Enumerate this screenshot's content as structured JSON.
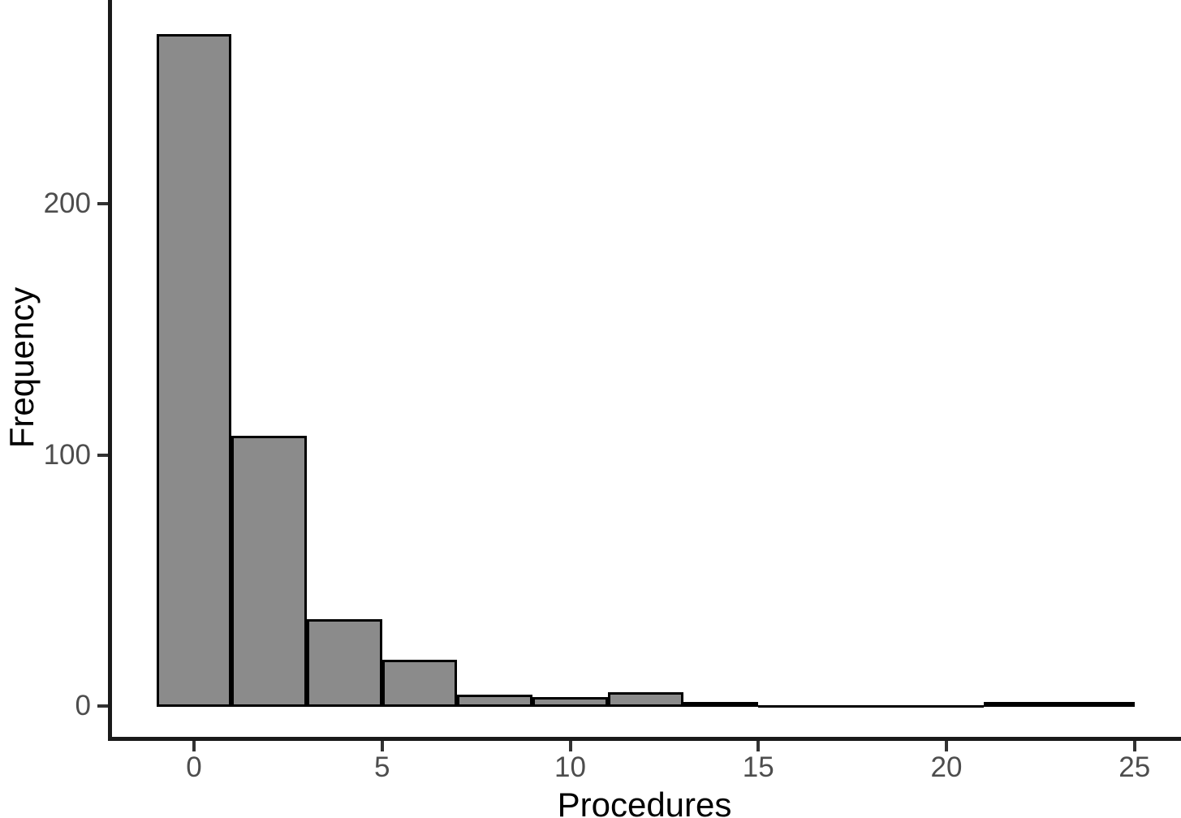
{
  "figure": {
    "background": "#ffffff"
  },
  "chart_data": {
    "type": "bar",
    "subtype": "histogram",
    "title": "",
    "xlabel": "Procedures",
    "ylabel": "Frequency",
    "bin_edges": [
      -1,
      1,
      3,
      5,
      7,
      9,
      11,
      13,
      15,
      17,
      19,
      21,
      23,
      25
    ],
    "counts": [
      267,
      107,
      34,
      18,
      4,
      3,
      5,
      1,
      0,
      0,
      0,
      1,
      1
    ],
    "x_ticks": [
      0,
      5,
      10,
      15,
      20,
      25
    ],
    "y_ticks": [
      0,
      100,
      200
    ],
    "xlim": [
      -2.3,
      26.3
    ],
    "ylim": [
      -13,
      281
    ],
    "grid": false,
    "legend": false,
    "bar_fill": "#8b8b8b",
    "bar_stroke": "#000000",
    "axis_line_color": "#1a1a1a",
    "tick_color": "#333333",
    "tick_label_color": "#4d4d4d",
    "axis_title_color": "#000000"
  }
}
